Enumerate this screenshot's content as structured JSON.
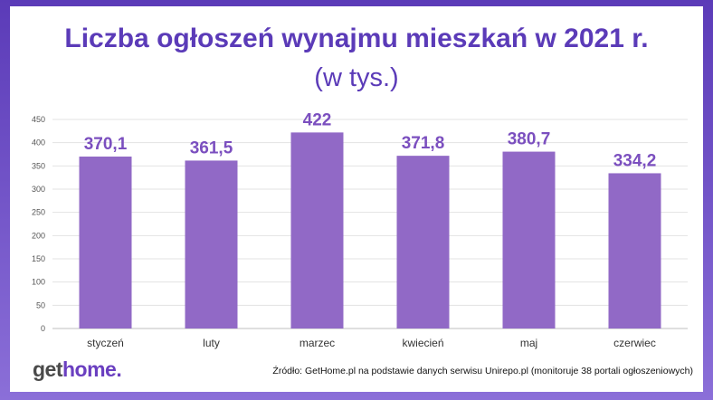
{
  "chart_data": {
    "type": "bar",
    "title": "Liczba ogłoszeń wynajmu mieszkań w 2021 r.",
    "subtitle": "(w tys.)",
    "categories": [
      "styczeń",
      "luty",
      "marzec",
      "kwiecień",
      "maj",
      "czerwiec"
    ],
    "values": [
      370.1,
      361.5,
      422,
      371.8,
      380.7,
      334.2
    ],
    "value_labels": [
      "370,1",
      "361,5",
      "422",
      "371,8",
      "380,7",
      "334,2"
    ],
    "ylim": [
      0,
      450
    ],
    "yticks": [
      0,
      50,
      100,
      150,
      200,
      250,
      300,
      350,
      400,
      450
    ],
    "grid": true,
    "bar_color": "#9169c6",
    "label_color": "#7b4fbf"
  },
  "logo": {
    "part1": "get",
    "part2": "home."
  },
  "source": "Źródło: GetHome.pl na podstawie danych serwisu Unirepo.pl (monitoruje 38 portali ogłoszeniowych)"
}
